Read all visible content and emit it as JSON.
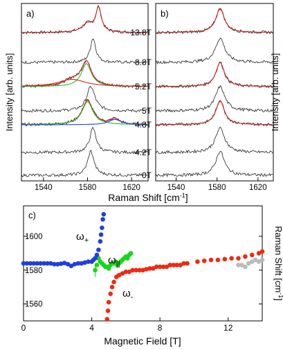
{
  "colors": {
    "raw": "#222222",
    "fit_total": "#d62020",
    "fit_green": "#22bb22",
    "fit_blue": "#2244dd",
    "omega_plus": "#1f3fe0",
    "omega_parallel": "#19d619",
    "omega_minus": "#ee2a12",
    "gray": "#bbbbbb"
  },
  "chart_data": [
    {
      "id": "a",
      "type": "line",
      "panel_label": "a)",
      "xlabel": "",
      "ylabel": "Intensity [arb. units]",
      "xlim": [
        1520,
        1635
      ],
      "xticks": [
        1540,
        1580,
        1620
      ],
      "series": [
        {
          "field": "13.8T",
          "peaks": [
            [
              1590,
              6,
              1.0
            ],
            [
              1580,
              12,
              0.35
            ]
          ],
          "fits": [
            "total"
          ]
        },
        {
          "field": "8.8T",
          "peaks": [
            [
              1585,
              6,
              1.0
            ]
          ],
          "fits": []
        },
        {
          "field": "5.2T",
          "peaks": [
            [
              1579,
              11,
              1.0
            ],
            [
              1566,
              18,
              0.25
            ]
          ],
          "fits": [
            "total",
            "green",
            "red_broad"
          ]
        },
        {
          "field": "5T",
          "peaks": [
            [
              1583,
              9,
              1.0
            ]
          ],
          "fits": []
        },
        {
          "field": "4.8T",
          "peaks": [
            [
              1580,
              12,
              1.0
            ],
            [
              1605,
              10,
              0.22
            ]
          ],
          "fits": [
            "total",
            "green",
            "blue"
          ]
        },
        {
          "field": "4.2T",
          "peaks": [
            [
              1585,
              7,
              1.0
            ]
          ],
          "fits": []
        },
        {
          "field": "0T",
          "peaks": [
            [
              1583,
              7,
              1.0
            ]
          ],
          "fits": []
        }
      ]
    },
    {
      "id": "b",
      "type": "line",
      "panel_label": "b)",
      "xlabel": "Raman Shift [cm-1]",
      "ylabel": "Intensity [arb. units]",
      "xlim": [
        1520,
        1635
      ],
      "xticks": [
        1540,
        1580,
        1620
      ],
      "series": [
        {
          "field": "13.8T",
          "center": 1583,
          "width": 10,
          "fit": true
        },
        {
          "field": "8.8T",
          "center": 1583,
          "width": 11,
          "fit": false
        },
        {
          "field": "5.2T",
          "center": 1583,
          "width": 10,
          "fit": true
        },
        {
          "field": "5T",
          "center": 1583,
          "width": 11,
          "fit": false
        },
        {
          "field": "4.8T",
          "center": 1583,
          "width": 10,
          "fit": true
        },
        {
          "field": "4.2T",
          "center": 1583,
          "width": 11,
          "fit": false
        },
        {
          "field": "0T",
          "center": 1583,
          "width": 10,
          "fit": false
        }
      ]
    },
    {
      "id": "c",
      "type": "scatter",
      "panel_label": "c)",
      "xlabel": "Magnetic Field [T]",
      "ylabel": "Raman Shift [cm-1]",
      "xlim": [
        0,
        14
      ],
      "ylim": [
        1550,
        1618
      ],
      "xticks": [
        0,
        4,
        8,
        12
      ],
      "yticks": [
        1560,
        1580,
        1600
      ],
      "annotations": [
        "ω+",
        "ω||",
        "ω-"
      ],
      "series": [
        {
          "name": "ω+",
          "color": "#1f3fe0",
          "points": [
            [
              0,
              1584
            ],
            [
              0.2,
              1584
            ],
            [
              0.4,
              1584
            ],
            [
              0.6,
              1584
            ],
            [
              0.8,
              1584
            ],
            [
              1.0,
              1584
            ],
            [
              1.2,
              1584
            ],
            [
              1.4,
              1584
            ],
            [
              1.6,
              1584
            ],
            [
              1.8,
              1583.5
            ],
            [
              2.0,
              1583.5
            ],
            [
              2.2,
              1583.8
            ],
            [
              2.4,
              1584.2
            ],
            [
              2.6,
              1583.5
            ],
            [
              2.8,
              1582.5
            ],
            [
              3.0,
              1583.5
            ],
            [
              3.2,
              1584
            ],
            [
              3.4,
              1584
            ],
            [
              3.6,
              1584.5
            ],
            [
              3.8,
              1585
            ],
            [
              4.0,
              1585
            ],
            [
              4.1,
              1586
            ],
            [
              4.2,
              1587
            ],
            [
              4.3,
              1589
            ],
            [
              4.4,
              1592
            ],
            [
              4.5,
              1597
            ],
            [
              4.55,
              1601
            ],
            [
              4.6,
              1605
            ],
            [
              4.65,
              1610
            ],
            [
              4.7,
              1613
            ]
          ]
        },
        {
          "name": "ω||",
          "color": "#19d619",
          "points": [
            [
              4.2,
              1580
            ],
            [
              4.3,
              1583
            ],
            [
              4.4,
              1587
            ],
            [
              4.5,
              1585
            ],
            [
              4.6,
              1584
            ],
            [
              4.7,
              1583
            ],
            [
              4.8,
              1582
            ],
            [
              4.9,
              1582
            ],
            [
              5.0,
              1581
            ],
            [
              5.1,
              1583
            ],
            [
              5.2,
              1584
            ],
            [
              5.3,
              1584
            ],
            [
              5.4,
              1585
            ],
            [
              5.5,
              1583
            ],
            [
              5.6,
              1584
            ],
            [
              5.7,
              1585
            ],
            [
              5.8,
              1586
            ],
            [
              5.9,
              1587
            ],
            [
              6.0,
              1588
            ],
            [
              6.1,
              1587
            ],
            [
              6.2,
              1589
            ],
            [
              6.3,
              1590
            ]
          ]
        },
        {
          "name": "ω-",
          "color": "#ee2a12",
          "points": [
            [
              4.9,
              1551
            ],
            [
              4.95,
              1556
            ],
            [
              5.0,
              1561
            ],
            [
              5.1,
              1566
            ],
            [
              5.2,
              1570
            ],
            [
              5.3,
              1573
            ],
            [
              5.45,
              1576
            ],
            [
              5.6,
              1577
            ],
            [
              5.8,
              1578
            ],
            [
              6.0,
              1579
            ],
            [
              6.2,
              1579
            ],
            [
              6.4,
              1580
            ],
            [
              6.6,
              1580
            ],
            [
              6.8,
              1580
            ],
            [
              7.0,
              1580
            ],
            [
              7.2,
              1580.5
            ],
            [
              7.4,
              1581
            ],
            [
              7.6,
              1581
            ],
            [
              7.8,
              1582
            ],
            [
              8.0,
              1582
            ],
            [
              8.2,
              1582
            ],
            [
              8.4,
              1582
            ],
            [
              8.6,
              1583
            ],
            [
              8.8,
              1583
            ],
            [
              9.0,
              1583
            ],
            [
              9.2,
              1583
            ],
            [
              9.4,
              1584
            ],
            [
              9.6,
              1584
            ],
            [
              10.2,
              1585
            ],
            [
              10.6,
              1585.5
            ],
            [
              11.0,
              1586
            ],
            [
              11.4,
              1586
            ],
            [
              11.8,
              1586.5
            ],
            [
              12.2,
              1587
            ],
            [
              12.6,
              1587
            ],
            [
              13.0,
              1588
            ],
            [
              13.4,
              1589
            ],
            [
              13.8,
              1590
            ],
            [
              14.0,
              1591
            ]
          ]
        },
        {
          "name": "",
          "color": "#bbbbbb",
          "points": [
            [
              12.6,
              1583
            ],
            [
              12.8,
              1583
            ],
            [
              13.0,
              1582
            ],
            [
              13.2,
              1584
            ],
            [
              13.4,
              1585
            ],
            [
              13.6,
              1586
            ],
            [
              13.8,
              1585
            ],
            [
              14.0,
              1586
            ]
          ]
        }
      ]
    }
  ]
}
